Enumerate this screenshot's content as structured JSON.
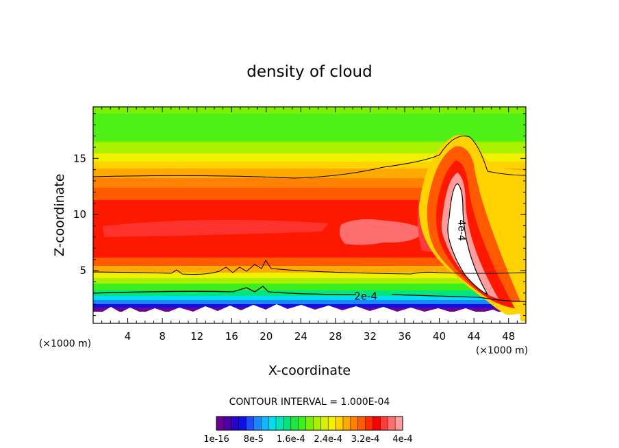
{
  "chart_data": {
    "type": "heatmap",
    "title": "density of cloud",
    "xlabel": "X-coordinate",
    "ylabel": "Z-coordinate",
    "x_unit_left": "(×1000 m)",
    "x_unit_right": "(×1000 m)",
    "xlim": [
      0,
      50
    ],
    "ylim": [
      0.3,
      19.6
    ],
    "x_ticks": [
      4,
      8,
      12,
      16,
      20,
      24,
      28,
      32,
      36,
      40,
      44,
      48
    ],
    "y_ticks": [
      5,
      10,
      15
    ],
    "contour_interval_text": "CONTOUR INTERVAL = 1.000E-04",
    "contour_labels": [
      {
        "text": "2e-4",
        "x": 31.5,
        "z": 2.7
      },
      {
        "text": "4e-4",
        "x": 42.6,
        "z": 8.6
      }
    ],
    "colorbar": {
      "colors": [
        "#6a0094",
        "#4b00a8",
        "#2c00c8",
        "#1010e6",
        "#1f4cff",
        "#1c86ff",
        "#12b6ff",
        "#00dcf0",
        "#00e6b8",
        "#00e67c",
        "#1ee640",
        "#3cf01e",
        "#78f000",
        "#aaf000",
        "#d6f000",
        "#f0f000",
        "#ffd200",
        "#ffaa00",
        "#ff8200",
        "#ff5a00",
        "#ff2d00",
        "#ff0000",
        "#ff3c3c",
        "#ff6e6e",
        "#ff9c9c"
      ],
      "labels": [
        "1e-16",
        "8e-5",
        "1.6e-4",
        "2.4e-4",
        "3.2e-4",
        "4e-4"
      ]
    }
  }
}
